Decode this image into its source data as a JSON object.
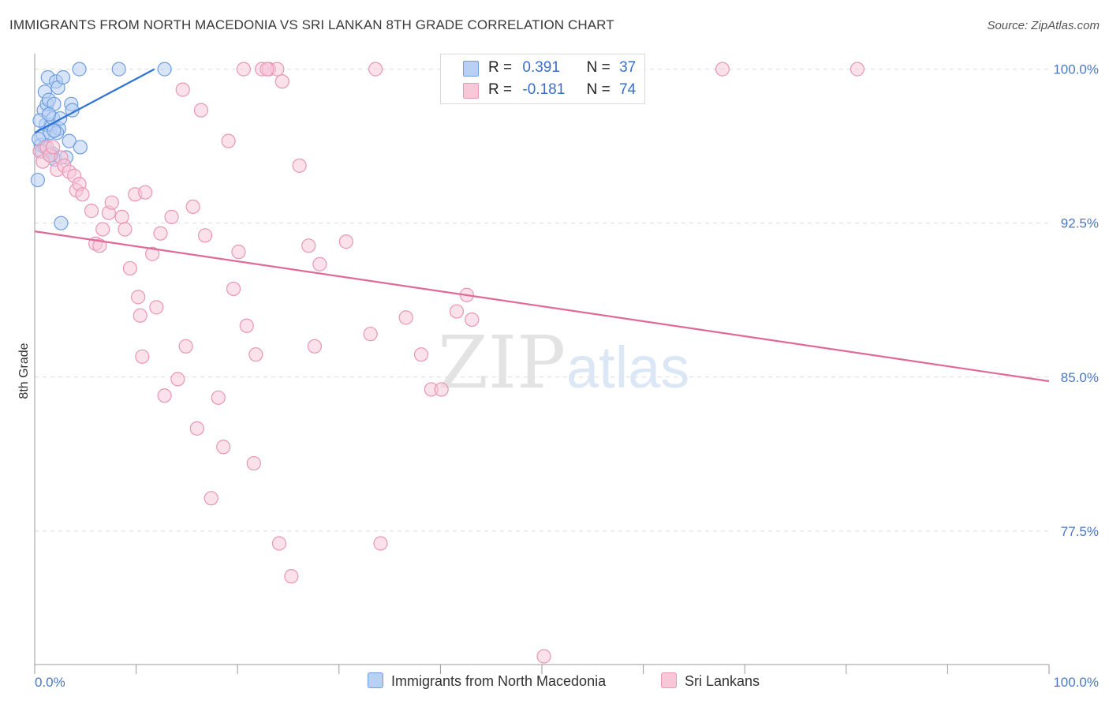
{
  "title": "IMMIGRANTS FROM NORTH MACEDONIA VS SRI LANKAN 8TH GRADE CORRELATION CHART",
  "source": "Source: ZipAtlas.com",
  "watermark": {
    "zip": "ZIP",
    "atlas": "atlas"
  },
  "legend": {
    "r_label": "R =",
    "n_label": "N =",
    "rows": [
      {
        "r": "0.391",
        "n": "37",
        "fill": "#b8d0f2",
        "stroke": "#6f9ee0"
      },
      {
        "r": "-0.181",
        "n": "74",
        "fill": "#f8c8d8",
        "stroke": "#e996b4"
      }
    ]
  },
  "bottom_legend": [
    "Immigrants from North Macedonia",
    "Sri Lankans"
  ],
  "chart_data": {
    "type": "scatter",
    "title": "IMMIGRANTS FROM NORTH MACEDONIA VS SRI LANKAN 8TH GRADE CORRELATION CHART",
    "xlabel": "",
    "ylabel": "8th Grade",
    "xlim": [
      0,
      100
    ],
    "ylim": [
      71.0,
      100.6
    ],
    "x_tick_labels": [
      "0.0%",
      "100.0%"
    ],
    "y_ticks": [
      100.0,
      92.5,
      85.0,
      77.5
    ],
    "y_tick_labels": [
      "100.0%",
      "92.5%",
      "85.0%",
      "77.5%"
    ],
    "grid": true,
    "series": [
      {
        "name": "Immigrants from North Macedonia",
        "color": "#6f9ee0",
        "fill": "#b8d0f2",
        "trend_color": "#2e72d2",
        "trend": {
          "x0": 0.0,
          "y0": 96.9,
          "x1": 11.8,
          "y1": 100.0
        },
        "points": [
          [
            0.3,
            94.6
          ],
          [
            0.6,
            96.3
          ],
          [
            0.8,
            96.8
          ],
          [
            0.9,
            98.0
          ],
          [
            1.0,
            98.9
          ],
          [
            1.1,
            97.3
          ],
          [
            1.2,
            98.3
          ],
          [
            1.3,
            99.6
          ],
          [
            1.4,
            98.5
          ],
          [
            1.5,
            96.9
          ],
          [
            1.6,
            97.3
          ],
          [
            1.7,
            95.9
          ],
          [
            1.8,
            97.6
          ],
          [
            1.9,
            98.3
          ],
          [
            2.0,
            95.6
          ],
          [
            2.1,
            99.4
          ],
          [
            2.3,
            99.1
          ],
          [
            2.4,
            97.1
          ],
          [
            2.5,
            97.6
          ],
          [
            2.6,
            92.5
          ],
          [
            2.8,
            99.6
          ],
          [
            3.1,
            95.7
          ],
          [
            3.4,
            96.5
          ],
          [
            3.6,
            98.3
          ],
          [
            3.7,
            98.0
          ],
          [
            4.5,
            96.2
          ],
          [
            4.4,
            100.0
          ],
          [
            8.3,
            100.0
          ],
          [
            12.8,
            100.0
          ],
          [
            0.5,
            97.5
          ],
          [
            0.7,
            96.0
          ],
          [
            1.4,
            97.8
          ],
          [
            1.6,
            95.8
          ],
          [
            2.2,
            96.9
          ],
          [
            1.0,
            96.2
          ],
          [
            0.4,
            96.6
          ],
          [
            1.9,
            97.0
          ]
        ]
      },
      {
        "name": "Sri Lankans",
        "color": "#e996b4",
        "fill": "#f8c8d8",
        "trend_color": "#e06a96",
        "trend": {
          "x0": 0.0,
          "y0": 92.1,
          "x1": 100.0,
          "y1": 84.8
        },
        "points": [
          [
            0.5,
            96.0
          ],
          [
            0.8,
            95.5
          ],
          [
            1.2,
            96.2
          ],
          [
            1.5,
            95.8
          ],
          [
            1.8,
            96.2
          ],
          [
            2.2,
            95.1
          ],
          [
            2.6,
            95.7
          ],
          [
            2.9,
            95.3
          ],
          [
            3.4,
            95.0
          ],
          [
            3.9,
            94.8
          ],
          [
            4.1,
            94.1
          ],
          [
            4.4,
            94.4
          ],
          [
            4.7,
            93.9
          ],
          [
            5.6,
            93.1
          ],
          [
            6.0,
            91.5
          ],
          [
            6.4,
            91.4
          ],
          [
            6.7,
            92.2
          ],
          [
            7.3,
            93.0
          ],
          [
            7.6,
            93.5
          ],
          [
            8.6,
            92.8
          ],
          [
            8.9,
            92.2
          ],
          [
            9.4,
            90.3
          ],
          [
            9.9,
            93.9
          ],
          [
            10.2,
            88.9
          ],
          [
            10.4,
            88.0
          ],
          [
            10.6,
            86.0
          ],
          [
            10.9,
            94.0
          ],
          [
            11.6,
            91.0
          ],
          [
            12.0,
            88.4
          ],
          [
            12.4,
            92.0
          ],
          [
            12.8,
            84.1
          ],
          [
            13.5,
            92.8
          ],
          [
            14.1,
            84.9
          ],
          [
            14.6,
            99.0
          ],
          [
            14.9,
            86.5
          ],
          [
            15.6,
            93.3
          ],
          [
            16.0,
            82.5
          ],
          [
            16.4,
            98.0
          ],
          [
            16.8,
            91.9
          ],
          [
            17.4,
            79.1
          ],
          [
            18.1,
            84.0
          ],
          [
            18.6,
            81.6
          ],
          [
            19.1,
            96.5
          ],
          [
            19.6,
            89.3
          ],
          [
            20.1,
            91.1
          ],
          [
            20.6,
            100.0
          ],
          [
            20.9,
            87.5
          ],
          [
            21.6,
            80.8
          ],
          [
            21.8,
            86.1
          ],
          [
            22.4,
            100.0
          ],
          [
            23.1,
            100.0
          ],
          [
            23.9,
            100.0
          ],
          [
            24.1,
            76.9
          ],
          [
            24.4,
            99.4
          ],
          [
            25.3,
            75.3
          ],
          [
            26.1,
            95.3
          ],
          [
            27.0,
            91.4
          ],
          [
            27.6,
            86.5
          ],
          [
            28.1,
            90.5
          ],
          [
            30.7,
            91.6
          ],
          [
            33.1,
            87.1
          ],
          [
            33.6,
            100.0
          ],
          [
            34.1,
            76.9
          ],
          [
            36.6,
            87.9
          ],
          [
            38.1,
            86.1
          ],
          [
            39.1,
            84.4
          ],
          [
            40.1,
            84.4
          ],
          [
            41.6,
            88.2
          ],
          [
            42.6,
            89.0
          ],
          [
            43.1,
            87.8
          ],
          [
            50.2,
            71.4
          ],
          [
            67.8,
            100.0
          ],
          [
            81.1,
            100.0
          ],
          [
            22.9,
            100.0
          ]
        ]
      }
    ]
  }
}
